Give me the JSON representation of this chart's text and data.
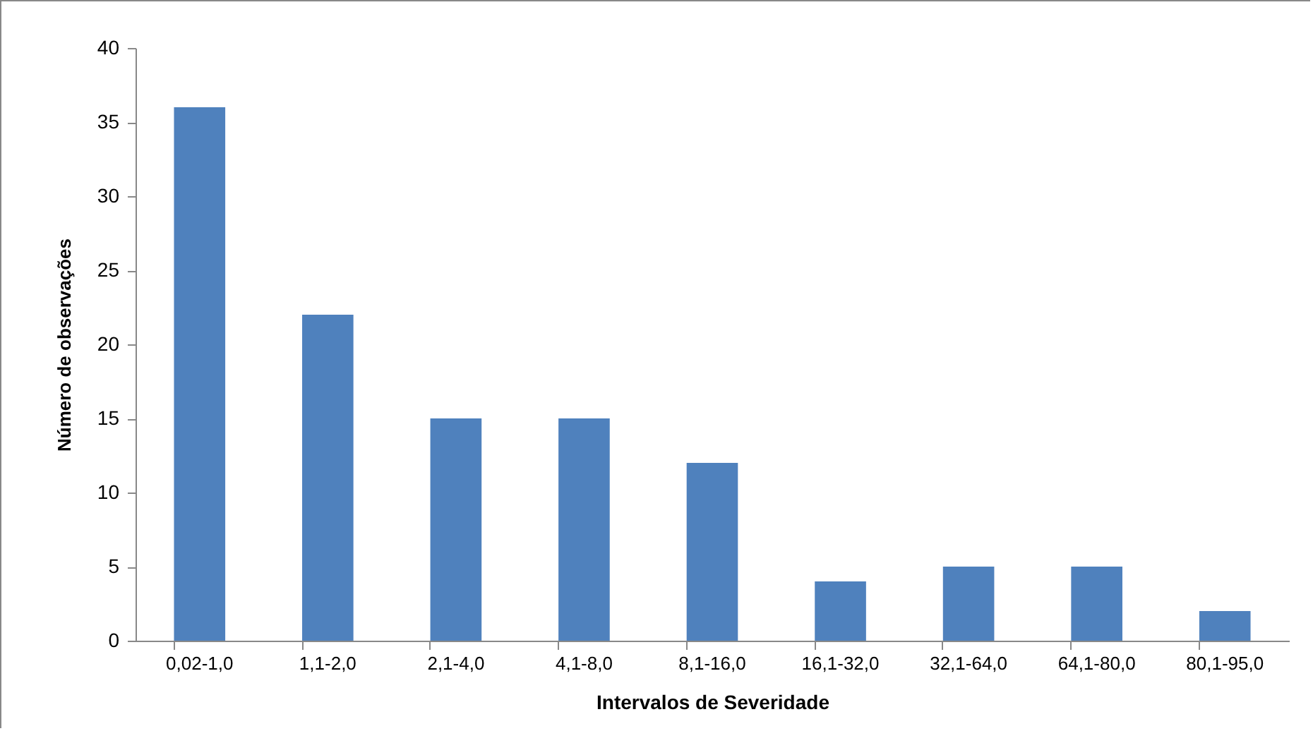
{
  "chart_data": {
    "type": "bar",
    "xlabel": "Intervalos de Severidade",
    "ylabel": "Número de observações",
    "categories": [
      "0,02-1,0",
      "1,1-2,0",
      "2,1-4,0",
      "4,1-8,0",
      "8,1-16,0",
      "16,1-32,0",
      "32,1-64,0",
      "64,1-80,0",
      "80,1-95,0"
    ],
    "values": [
      36,
      22,
      15,
      15,
      12,
      4,
      5,
      5,
      2
    ],
    "color": "#4f81bd",
    "ylim": [
      0,
      40
    ],
    "yticks": [
      0,
      5,
      10,
      15,
      20,
      25,
      30,
      35,
      40
    ],
    "grid": false
  }
}
